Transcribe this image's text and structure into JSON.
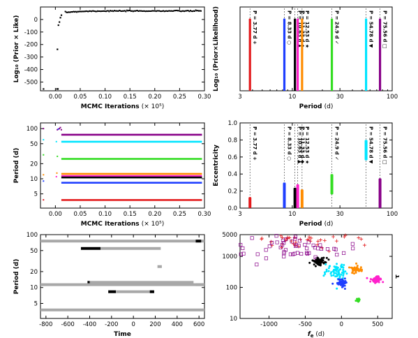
{
  "chart_data": [
    {
      "id": "mcmc_like",
      "type": "scatter",
      "xlabel": "MCMC Iterations",
      "xlabel_unit": "(× 10⁵)",
      "ylabel": "Log₁₀ (Prior × Like)",
      "xlim": [
        -0.03,
        0.3
      ],
      "ylim": [
        -570,
        100
      ],
      "xticks": [
        "0.00",
        "0.05",
        "0.10",
        "0.15",
        "0.20",
        "0.25",
        "0.30"
      ],
      "yticks": [
        "0",
        "-100",
        "-200",
        "-300",
        "-400",
        "-500"
      ],
      "color": "#000000",
      "plateau_from_x": 0.02,
      "plateau_y": 68,
      "outliers": [
        [
          -0.024,
          -555
        ],
        [
          0.003,
          -555
        ],
        [
          0.005,
          -555
        ],
        [
          0.004,
          -238
        ],
        [
          0.006,
          -45
        ],
        [
          0.008,
          -20
        ],
        [
          0.01,
          15
        ],
        [
          0.012,
          35
        ]
      ]
    },
    {
      "id": "periodogram",
      "type": "bar",
      "xlabel": "Period",
      "xlabel_unit": "(d)",
      "ylabel": "Log₁₀ (Prior×Likelihood)",
      "xscale": "log",
      "xlim": [
        3,
        100
      ],
      "xticks": [
        "3",
        "10",
        "30",
        "100"
      ],
      "peaks": [
        {
          "period": 3.77,
          "label": "P = 3.77 d",
          "symbol": "+",
          "color": "#e31a1c"
        },
        {
          "period": 8.33,
          "label": "P = 8.33 d",
          "symbol": "○",
          "color": "#1f3fff"
        },
        {
          "period": 10.63,
          "label": "P = 10.63 d",
          "symbol": "▲",
          "color": "#000000"
        },
        {
          "period": 11.33,
          "label": "P = 11.33 d",
          "symbol": "◆",
          "color": "#ff22cc"
        },
        {
          "period": 12.53,
          "label": "P = 12.53 d",
          "symbol": "★",
          "color": "#ff8c00"
        },
        {
          "period": 24.9,
          "label": "P = 24.9 d",
          "symbol": "✓",
          "color": "#33dd22"
        },
        {
          "period": 54.78,
          "label": "P = 54.78 d",
          "symbol": "▼",
          "color": "#00e5ff"
        },
        {
          "period": 75.56,
          "label": "P = 75.56 d",
          "symbol": "□",
          "color": "#880088"
        }
      ]
    },
    {
      "id": "period_chain",
      "type": "scatter",
      "xlabel": "MCMC Iterations",
      "xlabel_unit": "(× 10⁵)",
      "ylabel": "Period (d)",
      "yscale": "log",
      "xlim": [
        -0.03,
        0.3
      ],
      "ylim": [
        2.6,
        130
      ],
      "xticks": [
        "0.00",
        "0.05",
        "0.10",
        "0.15",
        "0.20",
        "0.25",
        "0.30"
      ],
      "yticks": [
        "5",
        "10",
        "20",
        "50",
        "100"
      ],
      "series": [
        {
          "color": "#880088",
          "values": 75.56
        },
        {
          "color": "#00e5ff",
          "values": 54.78
        },
        {
          "color": "#33dd22",
          "values": 24.9
        },
        {
          "color": "#ff8c00",
          "values": 12.53
        },
        {
          "color": "#ff22cc",
          "values": 11.33
        },
        {
          "color": "#000000",
          "values": 10.63
        },
        {
          "color": "#1f3fff",
          "values": 8.33
        },
        {
          "color": "#e31a1c",
          "values": 3.77
        }
      ]
    },
    {
      "id": "eccentricity",
      "type": "scatter",
      "xlabel": "Period",
      "xlabel_unit": "(d)",
      "ylabel": "Eccentricity",
      "xscale": "log",
      "xlim": [
        3,
        100
      ],
      "ylim": [
        0,
        1.0
      ],
      "xticks": [
        "3",
        "10",
        "30",
        "100"
      ],
      "yticks": [
        "0.0",
        "0.2",
        "0.4",
        "0.6",
        "0.8",
        "1.0"
      ],
      "clusters": [
        {
          "period": 3.77,
          "ecc": [
            0.0,
            0.13
          ],
          "color": "#e31a1c"
        },
        {
          "period": 8.33,
          "ecc": [
            0.0,
            0.3
          ],
          "color": "#1f3fff"
        },
        {
          "period": 10.63,
          "ecc": [
            0.0,
            0.24
          ],
          "color": "#000000"
        },
        {
          "period": 11.33,
          "ecc": [
            0.0,
            0.28
          ],
          "color": "#ff22cc"
        },
        {
          "period": 12.53,
          "ecc": [
            0.0,
            0.22
          ],
          "color": "#ff8c00"
        },
        {
          "period": 24.9,
          "ecc": [
            0.16,
            0.4
          ],
          "color": "#33dd22"
        },
        {
          "period": 54.78,
          "ecc": [
            0.56,
            0.8
          ],
          "color": "#00e5ff"
        },
        {
          "period": 75.56,
          "ecc": [
            0.0,
            0.35
          ],
          "color": "#880088"
        }
      ]
    },
    {
      "id": "time_coverage",
      "type": "bar",
      "xlabel": "Time",
      "ylabel": "Period (d)",
      "yscale": "log",
      "xlim": [
        -850,
        650
      ],
      "ylim": [
        2.6,
        100
      ],
      "xticks": [
        "-800",
        "-600",
        "-400",
        "-200",
        "0",
        "200",
        "400",
        "600"
      ],
      "yticks": [
        "5",
        "10",
        "20",
        "50",
        "100"
      ],
      "segments": [
        {
          "period": 75.56,
          "from": -850,
          "to": 650,
          "color": "#a8a8a8"
        },
        {
          "period": 75.56,
          "from": 570,
          "to": 620,
          "color": "#000000"
        },
        {
          "period": 54.78,
          "from": -480,
          "to": -300,
          "color": "#000000"
        },
        {
          "period": 54.78,
          "from": -300,
          "to": 250,
          "color": "#a8a8a8"
        },
        {
          "period": 24.9,
          "from": 220,
          "to": 260,
          "color": "#a8a8a8"
        },
        {
          "period": 12.53,
          "from": -420,
          "to": -400,
          "color": "#000000"
        },
        {
          "period": 12.53,
          "from": -400,
          "to": 550,
          "color": "#a8a8a8"
        },
        {
          "period": 11.33,
          "from": -850,
          "to": 650,
          "color": "#a8a8a8"
        },
        {
          "period": 11.33,
          "from": 570,
          "to": 650,
          "color": "#a8a8a8"
        },
        {
          "period": 8.33,
          "from": -230,
          "to": -160,
          "color": "#000000"
        },
        {
          "period": 8.33,
          "from": -160,
          "to": 150,
          "color": "#a8a8a8"
        },
        {
          "period": 8.33,
          "from": 150,
          "to": 190,
          "color": "#000000"
        },
        {
          "period": 3.77,
          "from": -850,
          "to": 650,
          "color": "#a8a8a8"
        }
      ]
    },
    {
      "id": "tau_fe",
      "type": "scatter",
      "xlabel": "f_e",
      "xlabel_unit": "(d)",
      "ylabel": "τ",
      "yscale": "log",
      "xlim": [
        -1400,
        700
      ],
      "ylim": [
        10,
        5000
      ],
      "xticks": [
        "-1000",
        "-500",
        "0",
        "500"
      ],
      "yticks": [
        "10",
        "100",
        "1000",
        "5000"
      ],
      "clouds": [
        {
          "color": "#e31a1c",
          "symbol": "+",
          "cx": -500,
          "cy": 3200,
          "sx": 400,
          "sy": 0.18,
          "n": 45
        },
        {
          "color": "#880088",
          "symbol": "□",
          "cx": -650,
          "cy": 2000,
          "sx": 450,
          "sy": 0.25,
          "n": 55
        },
        {
          "color": "#000000",
          "symbol": "•",
          "cx": -300,
          "cy": 700,
          "sx": 40,
          "sy": 0.06,
          "n": 60
        },
        {
          "color": "#00e5ff",
          "symbol": "•",
          "cx": -60,
          "cy": 330,
          "sx": 70,
          "sy": 0.13,
          "n": 70
        },
        {
          "color": "#ff8c00",
          "symbol": "•",
          "cx": 200,
          "cy": 380,
          "sx": 40,
          "sy": 0.06,
          "n": 50
        },
        {
          "color": "#1f3fff",
          "symbol": "•",
          "cx": 0,
          "cy": 140,
          "sx": 30,
          "sy": 0.08,
          "n": 60
        },
        {
          "color": "#ff22cc",
          "symbol": "•",
          "cx": 480,
          "cy": 180,
          "sx": 40,
          "sy": 0.05,
          "n": 50
        },
        {
          "color": "#33dd22",
          "symbol": "•",
          "cx": 230,
          "cy": 40,
          "sx": 15,
          "sy": 0.05,
          "n": 15
        }
      ]
    }
  ]
}
